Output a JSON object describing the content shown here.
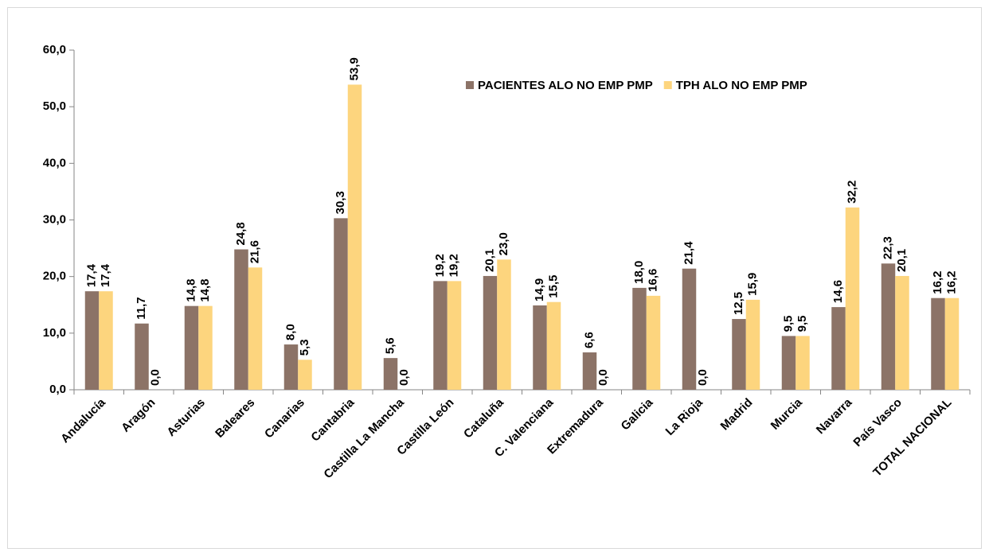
{
  "chart_data": {
    "type": "bar",
    "categories": [
      "Andalucía",
      "Aragón",
      "Asturias",
      "Baleares",
      "Canarias",
      "Cantabria",
      "Castilla La Mancha",
      "Castilla León",
      "Cataluña",
      "C. Valenciana",
      "Extremadura",
      "Galicia",
      "La Rioja",
      "Madrid",
      "Murcia",
      "Navarra",
      "País Vasco",
      "TOTAL NACIONAL"
    ],
    "series": [
      {
        "name": "PACIENTES ALO NO EMP PMP",
        "color": "#8c7367",
        "values": [
          17.4,
          11.7,
          14.8,
          24.8,
          8.0,
          30.3,
          5.6,
          19.2,
          20.1,
          14.9,
          6.6,
          18.0,
          21.4,
          12.5,
          9.5,
          14.6,
          22.3,
          16.2
        ],
        "value_labels": [
          "17,4",
          "11,7",
          "14,8",
          "24,8",
          "8,0",
          "30,3",
          "5,6",
          "19,2",
          "20,1",
          "14,9",
          "6,6",
          "18,0",
          "21,4",
          "12,5",
          "9,5",
          "14,6",
          "22,3",
          "16,2"
        ]
      },
      {
        "name": "TPH ALO NO EMP PMP",
        "color": "#fdd57e",
        "values": [
          17.4,
          0.0,
          14.8,
          21.6,
          5.3,
          53.9,
          0.0,
          19.2,
          23.0,
          15.5,
          0.0,
          16.6,
          0.0,
          15.9,
          9.5,
          32.2,
          20.1,
          16.2
        ],
        "value_labels": [
          "17,4",
          "0,0",
          "14,8",
          "21,6",
          "5,3",
          "53,9",
          "0,0",
          "19,2",
          "23,0",
          "15,5",
          "0,0",
          "16,6",
          "0,0",
          "15,9",
          "9,5",
          "32,2",
          "20,1",
          "16,2"
        ]
      }
    ],
    "ylim": [
      0,
      60
    ],
    "yticks": [
      {
        "value": 0,
        "label": "0,0"
      },
      {
        "value": 10,
        "label": "10,0"
      },
      {
        "value": 20,
        "label": "20,0"
      },
      {
        "value": 30,
        "label": "30,0"
      },
      {
        "value": 40,
        "label": "40,0"
      },
      {
        "value": 50,
        "label": "50,0"
      },
      {
        "value": 60,
        "label": "60,0"
      }
    ],
    "legend": "top-right",
    "grid": false
  }
}
